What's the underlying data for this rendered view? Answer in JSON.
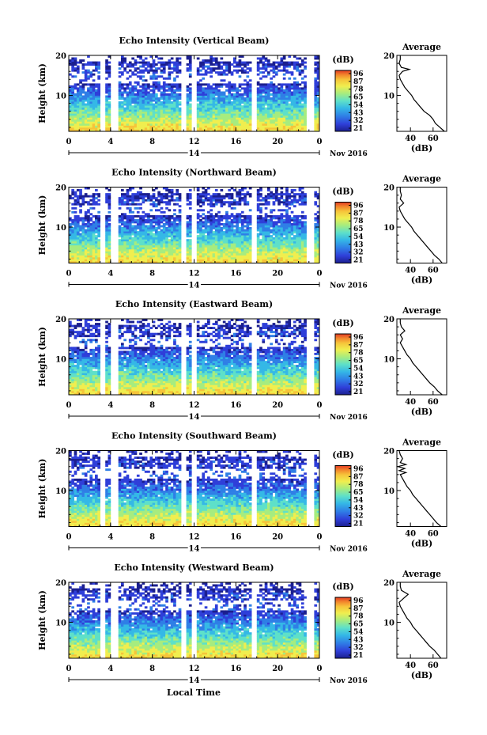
{
  "footer": {
    "xlabel": "Local Time"
  },
  "colorbar": {
    "unit": "(dB)",
    "ticks": [
      "96",
      "87",
      "78",
      "65",
      "54",
      "43",
      "32",
      "21"
    ],
    "colors": [
      "#1b1f8f",
      "#2f3fd9",
      "#2f7fe6",
      "#35b8e6",
      "#5ee0c9",
      "#a6ec7f",
      "#f0ee4f",
      "#f6c43a",
      "#f2842c",
      "#e23a23"
    ]
  },
  "chart_data": [
    {
      "type": "heatmap",
      "title": "Echo Intensity (Vertical Beam)",
      "ylabel": "Height (km)",
      "x_ticks": [
        "0",
        "4",
        "8",
        "12",
        "16",
        "20",
        "0"
      ],
      "x_range": [
        0,
        24
      ],
      "y_ticks": [
        "20",
        "10"
      ],
      "y_range": [
        1,
        20
      ],
      "date_center": "14",
      "month_label": "Nov 2016",
      "colorbar_ticks": [
        "96",
        "87",
        "78",
        "65",
        "54",
        "43",
        "32",
        "21"
      ],
      "profile": {
        "title": "Average",
        "xlabel": "(dB)",
        "x_ticks": [
          "40",
          "60"
        ],
        "y_ticks": [
          "20",
          "10"
        ],
        "heights": [
          1,
          2,
          3,
          4,
          5,
          6,
          7,
          8,
          9,
          10,
          11,
          12,
          13,
          14,
          15,
          16,
          16.5,
          17,
          18,
          19,
          20
        ],
        "values": [
          70,
          66,
          62,
          60,
          57,
          52,
          49,
          46,
          43,
          41,
          38,
          35,
          33,
          31,
          30,
          33,
          39,
          32,
          30,
          31,
          31
        ]
      }
    },
    {
      "type": "heatmap",
      "title": "Echo Intensity (Northward Beam)",
      "ylabel": "Height (km)",
      "x_ticks": [
        "0",
        "4",
        "8",
        "12",
        "16",
        "20",
        "0"
      ],
      "x_range": [
        0,
        24
      ],
      "y_ticks": [
        "20",
        "10"
      ],
      "y_range": [
        1,
        20
      ],
      "date_center": "14",
      "month_label": "Nov 2016",
      "colorbar_ticks": [
        "96",
        "87",
        "78",
        "65",
        "54",
        "43",
        "32",
        "21"
      ],
      "profile": {
        "title": "Average",
        "xlabel": "(dB)",
        "x_ticks": [
          "40",
          "60"
        ],
        "y_ticks": [
          "20",
          "10"
        ],
        "heights": [
          1,
          2,
          3,
          4,
          5,
          6,
          7,
          8,
          9,
          10,
          11,
          12,
          13,
          14,
          15,
          16,
          17,
          18,
          19,
          20
        ],
        "values": [
          68,
          65,
          61,
          58,
          55,
          52,
          49,
          46,
          43,
          41,
          38,
          35,
          33,
          31,
          30,
          34,
          31,
          32,
          31,
          31
        ]
      }
    },
    {
      "type": "heatmap",
      "title": "Echo Intensity (Eastward Beam)",
      "ylabel": "Height (km)",
      "x_ticks": [
        "0",
        "4",
        "8",
        "12",
        "16",
        "20",
        "0"
      ],
      "x_range": [
        0,
        24
      ],
      "y_ticks": [
        "20",
        "10"
      ],
      "y_range": [
        1,
        20
      ],
      "date_center": "14",
      "month_label": "Nov 2016",
      "colorbar_ticks": [
        "96",
        "87",
        "78",
        "65",
        "54",
        "43",
        "32",
        "21"
      ],
      "profile": {
        "title": "Average",
        "xlabel": "(dB)",
        "x_ticks": [
          "40",
          "60"
        ],
        "y_ticks": [
          "20",
          "10"
        ],
        "heights": [
          1,
          2,
          3,
          4,
          5,
          6,
          7,
          8,
          9,
          10,
          11,
          12,
          13,
          14,
          15,
          16,
          17,
          18,
          19,
          20
        ],
        "values": [
          68,
          64,
          61,
          57,
          54,
          51,
          48,
          45,
          42,
          40,
          37,
          35,
          33,
          31,
          33,
          31,
          35,
          32,
          31,
          31
        ]
      }
    },
    {
      "type": "heatmap",
      "title": "Echo Intensity (Southward Beam)",
      "ylabel": "Height (km)",
      "x_ticks": [
        "0",
        "4",
        "8",
        "12",
        "16",
        "20",
        "0"
      ],
      "x_range": [
        0,
        24
      ],
      "y_ticks": [
        "20",
        "10"
      ],
      "y_range": [
        1,
        20
      ],
      "date_center": "14",
      "month_label": "Nov 2016",
      "colorbar_ticks": [
        "96",
        "87",
        "78",
        "65",
        "54",
        "43",
        "32",
        "21"
      ],
      "profile": {
        "title": "Average",
        "xlabel": "(dB)",
        "x_ticks": [
          "40",
          "60"
        ],
        "y_ticks": [
          "20",
          "10"
        ],
        "heights": [
          1,
          2,
          3,
          4,
          5,
          6,
          7,
          8,
          9,
          10,
          11,
          12,
          13,
          14,
          14.5,
          15,
          15.5,
          16,
          16.5,
          17,
          18,
          19,
          20
        ],
        "values": [
          67,
          63,
          60,
          57,
          54,
          51,
          48,
          45,
          42,
          40,
          37,
          35,
          33,
          31,
          36,
          30,
          35,
          29,
          36,
          31,
          33,
          31,
          30
        ]
      }
    },
    {
      "type": "heatmap",
      "title": "Echo Intensity (Westward Beam)",
      "ylabel": "Height (km)",
      "x_ticks": [
        "0",
        "4",
        "8",
        "12",
        "16",
        "20",
        "0"
      ],
      "x_range": [
        0,
        24
      ],
      "y_ticks": [
        "20",
        "10"
      ],
      "y_range": [
        1,
        20
      ],
      "date_center": "14",
      "month_label": "Nov 2016",
      "colorbar_ticks": [
        "96",
        "87",
        "78",
        "65",
        "54",
        "43",
        "32",
        "21"
      ],
      "profile": {
        "title": "Average",
        "xlabel": "(dB)",
        "x_ticks": [
          "40",
          "60"
        ],
        "y_ticks": [
          "20",
          "10"
        ],
        "heights": [
          1,
          2,
          3,
          4,
          5,
          6,
          7,
          8,
          9,
          10,
          11,
          12,
          13,
          14,
          15,
          16,
          17,
          18,
          19,
          20
        ],
        "values": [
          67,
          64,
          61,
          57,
          54,
          51,
          48,
          45,
          42,
          40,
          37,
          35,
          33,
          31,
          30,
          34,
          38,
          32,
          31,
          31
        ]
      }
    }
  ]
}
